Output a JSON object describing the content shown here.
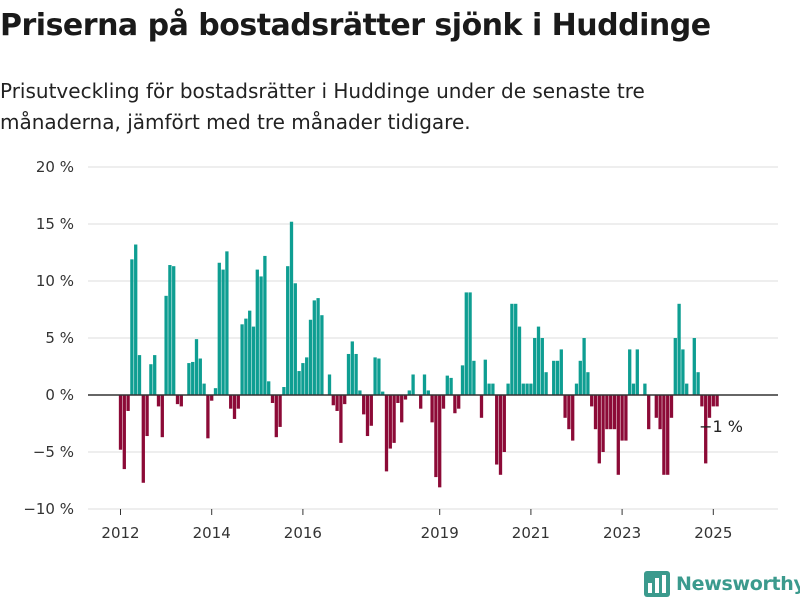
{
  "title": "Priserna på bostadsrätter sjönk i Huddinge",
  "subtitle": "Prisutveckling för bostadsrätter i Huddinge under de senaste tre månaderna, jämfört med tre månader tidigare.",
  "brand": {
    "name": "Newsworthy",
    "color": "#3b9a8d"
  },
  "colors": {
    "positive": "#0e9e92",
    "negative": "#8c0a37",
    "grid": "#dddddd",
    "zero_line": "#333333",
    "tick_text": "#333333"
  },
  "chart_data": {
    "type": "bar",
    "x_start": "2012-01",
    "x_end": "2025-02",
    "ylim": [
      -10,
      20
    ],
    "y_ticks": [
      20,
      15,
      10,
      5,
      0,
      -5,
      -10
    ],
    "y_tick_labels": [
      "20 %",
      "15 %",
      "10 %",
      "5 %",
      "0 %",
      "−5 %",
      "−10 %"
    ],
    "x_ticks": [
      "2012-01",
      "2014-01",
      "2016-01",
      "2019-01",
      "2021-01",
      "2023-01",
      "2025-01"
    ],
    "x_tick_labels": [
      "2012",
      "2014",
      "2016",
      "2019",
      "2021",
      "2023",
      "2025"
    ],
    "annotation": {
      "month": "2025-02",
      "value": -1,
      "label": "−1 %"
    },
    "values": [
      -4.8,
      -6.5,
      -1.4,
      11.9,
      13.2,
      3.5,
      -7.7,
      -3.6,
      2.7,
      3.5,
      -1.0,
      -3.7,
      8.7,
      11.4,
      11.3,
      -0.8,
      -1.0,
      0,
      2.8,
      2.9,
      4.9,
      3.2,
      1.0,
      -3.8,
      -0.5,
      0.6,
      11.6,
      11.0,
      12.6,
      -1.2,
      -2.1,
      -1.2,
      6.2,
      6.7,
      7.4,
      6.0,
      11.0,
      10.4,
      12.2,
      1.2,
      -0.7,
      -3.7,
      -2.8,
      0.7,
      11.3,
      15.2,
      9.8,
      2.1,
      2.8,
      3.3,
      6.6,
      8.3,
      8.5,
      7.0,
      0,
      1.8,
      -0.9,
      -1.4,
      -4.2,
      -0.8,
      3.6,
      4.7,
      3.6,
      0.4,
      -1.7,
      -3.6,
      -2.7,
      3.3,
      3.2,
      0.3,
      -6.7,
      -4.7,
      -4.2,
      -0.7,
      -2.4,
      -0.4,
      0.4,
      1.8,
      0,
      -1.2,
      1.8,
      0.4,
      -2.4,
      -7.2,
      -8.1,
      -1.2,
      1.7,
      1.5,
      -1.6,
      -1.2,
      2.6,
      9.0,
      9.0,
      3.0,
      0,
      -2.0,
      3.1,
      1.0,
      1.0,
      -6.1,
      -7.0,
      -5.0,
      1.0,
      8.0,
      8.0,
      6.0,
      1.0,
      1.0,
      1.0,
      5.0,
      6.0,
      5.0,
      2.0,
      0,
      3.0,
      3.0,
      4.0,
      -2.0,
      -3.0,
      -4.0,
      1.0,
      3.0,
      5.0,
      2.0,
      -1.0,
      -3.0,
      -6.0,
      -5.0,
      -3.0,
      -3.0,
      -3.0,
      -7.0,
      -4.0,
      -4.0,
      4.0,
      1.0,
      4.0,
      0,
      1.0,
      -3.0,
      0,
      -2.0,
      -3.0,
      -7.0,
      -7.0,
      -2.0,
      5.0,
      8.0,
      4.0,
      1.0,
      0,
      5.0,
      2.0,
      -1.0,
      -6.0,
      -2.0,
      -1.0,
      -1.0
    ]
  }
}
